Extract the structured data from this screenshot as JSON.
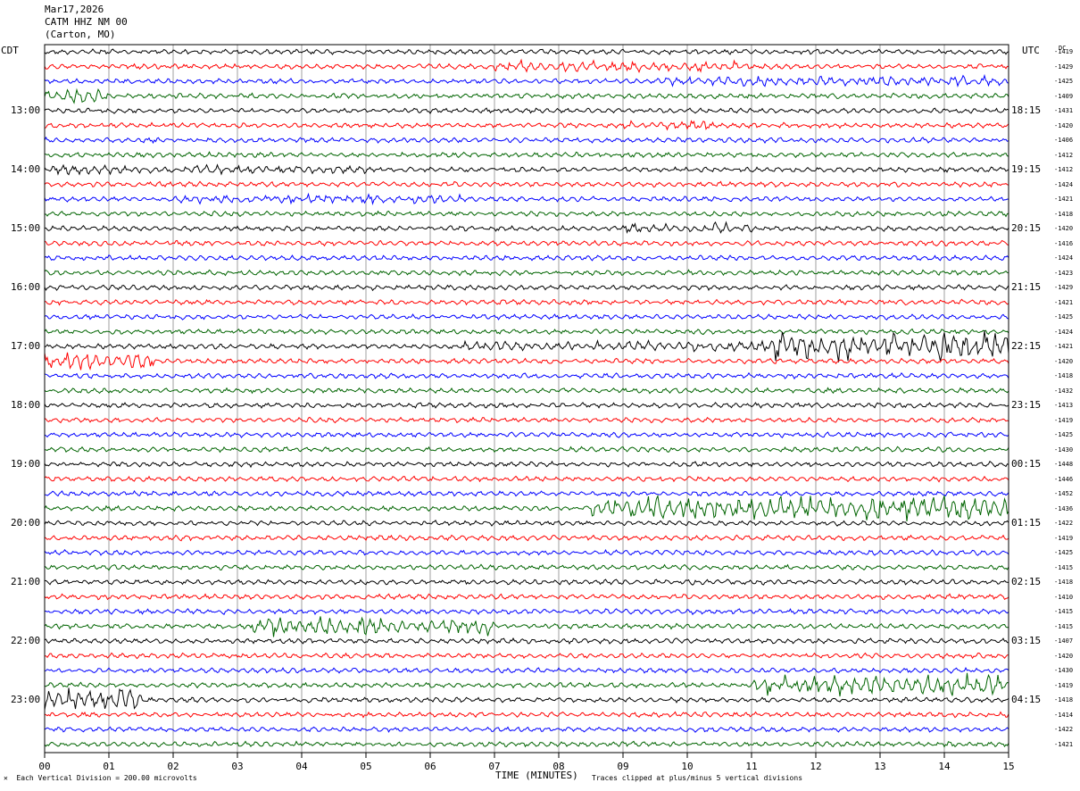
{
  "header": {
    "date": "Mar17,2026",
    "station": "CATM HHZ NM 00",
    "location": "(Carton, MO)"
  },
  "left_tz": "CDT",
  "right_tz": "UTC",
  "dc_header": "DC",
  "footer": {
    "scale": "Each Vertical Division =  200.00 microvolts",
    "xlabel": "TIME (MINUTES)",
    "clip_note": "Traces clipped at plus/minus 5 vertical divisions"
  },
  "chart_data": {
    "type": "line",
    "title": "CATM HHZ NM 00 (Carton, MO) Mar17,2026",
    "xlabel": "TIME (MINUTES)",
    "x_range": [
      0,
      15
    ],
    "x_ticks": [
      "00",
      "01",
      "02",
      "03",
      "04",
      "05",
      "06",
      "07",
      "08",
      "09",
      "10",
      "11",
      "12",
      "13",
      "14",
      "15"
    ],
    "trace_colors": [
      "#000000",
      "#ff0000",
      "#0000ff",
      "#006400"
    ],
    "left_hour_labels": [
      "13:00",
      "14:00",
      "15:00",
      "16:00",
      "17:00",
      "18:00",
      "19:00",
      "20:00",
      "21:00",
      "22:00",
      "23:00"
    ],
    "right_hour_labels": [
      "18:15",
      "19:15",
      "20:15",
      "21:15",
      "22:15",
      "23:15",
      "00:15",
      "01:15",
      "02:15",
      "03:15",
      "04:15"
    ],
    "dc_offsets": [
      -1419,
      -1429,
      -1425,
      -1409,
      -1431,
      -1420,
      -1406,
      -1412,
      -1412,
      -1424,
      -1421,
      -1418,
      -1420,
      -1416,
      -1424,
      -1423,
      -1429,
      -1421,
      -1425,
      -1424,
      -1421,
      -1420,
      -1418,
      -1432,
      -1413,
      -1419,
      -1425,
      -1430,
      -1448,
      -1446,
      -1452,
      -1436,
      -1422,
      -1419,
      -1425,
      -1415,
      -1418,
      -1410,
      -1415,
      -1415,
      -1407,
      -1420,
      -1430,
      -1419,
      -1418,
      -1414,
      -1422,
      -1421
    ],
    "bursts": [
      {
        "trace": 1,
        "start_min": 7.0,
        "end_min": 11.0,
        "amplitude": 1.8
      },
      {
        "trace": 2,
        "start_min": 9.5,
        "end_min": 15.0,
        "amplitude": 1.8
      },
      {
        "trace": 3,
        "start_min": 0.0,
        "end_min": 1.0,
        "amplitude": 2.2
      },
      {
        "trace": 5,
        "start_min": 9.0,
        "end_min": 10.5,
        "amplitude": 1.6
      },
      {
        "trace": 8,
        "start_min": 0.0,
        "end_min": 5.0,
        "amplitude": 1.6
      },
      {
        "trace": 10,
        "start_min": 2.0,
        "end_min": 6.5,
        "amplitude": 1.6
      },
      {
        "trace": 12,
        "start_min": 9.0,
        "end_min": 11.0,
        "amplitude": 1.8
      },
      {
        "trace": 20,
        "start_min": 6.5,
        "end_min": 11.3,
        "amplitude": 1.8
      },
      {
        "trace": 20,
        "start_min": 11.3,
        "end_min": 15.0,
        "amplitude": 5.0
      },
      {
        "trace": 21,
        "start_min": 0.0,
        "end_min": 1.7,
        "amplitude": 3.2
      },
      {
        "trace": 31,
        "start_min": 8.5,
        "end_min": 15.0,
        "amplitude": 4.0
      },
      {
        "trace": 39,
        "start_min": 3.2,
        "end_min": 7.0,
        "amplitude": 3.2
      },
      {
        "trace": 43,
        "start_min": 11.0,
        "end_min": 15.0,
        "amplitude": 3.5
      },
      {
        "trace": 44,
        "start_min": 0.0,
        "end_min": 1.5,
        "amplitude": 4.0
      }
    ]
  }
}
